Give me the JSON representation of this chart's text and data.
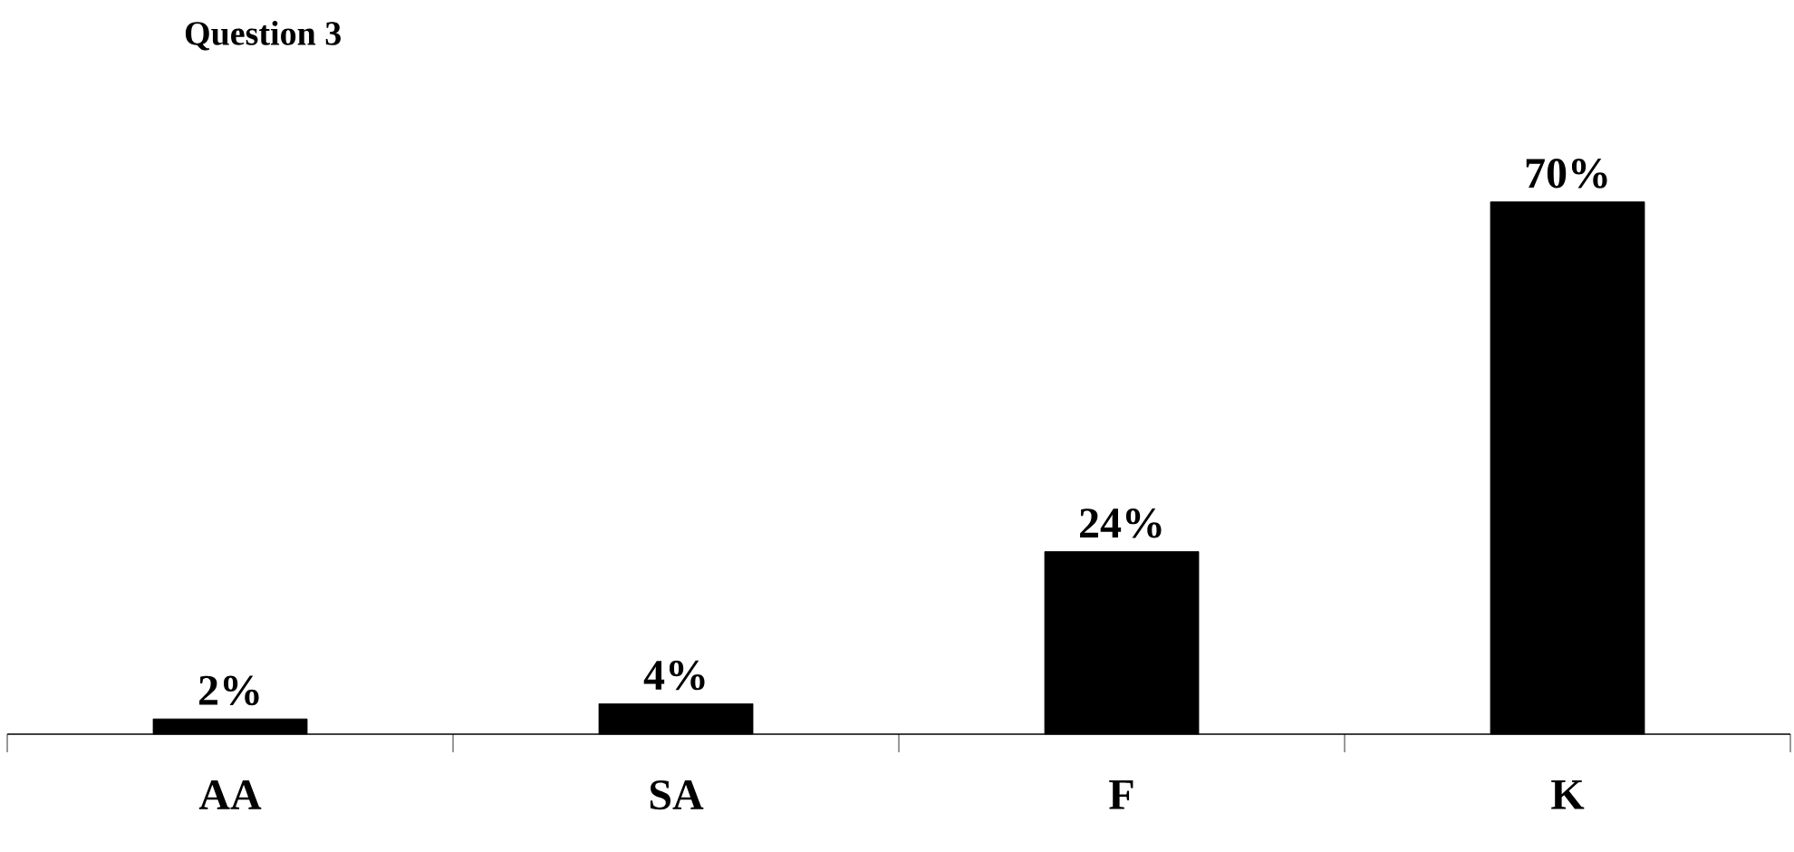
{
  "chart_data": {
    "type": "bar",
    "title": "Question 3",
    "categories": [
      "AA",
      "SA",
      "F",
      "K"
    ],
    "values": [
      2,
      4,
      24,
      70
    ],
    "value_labels": [
      "2%",
      "4%",
      "24%",
      "70%"
    ],
    "color": "#000000",
    "grid": false,
    "tick_labels": "x"
  }
}
